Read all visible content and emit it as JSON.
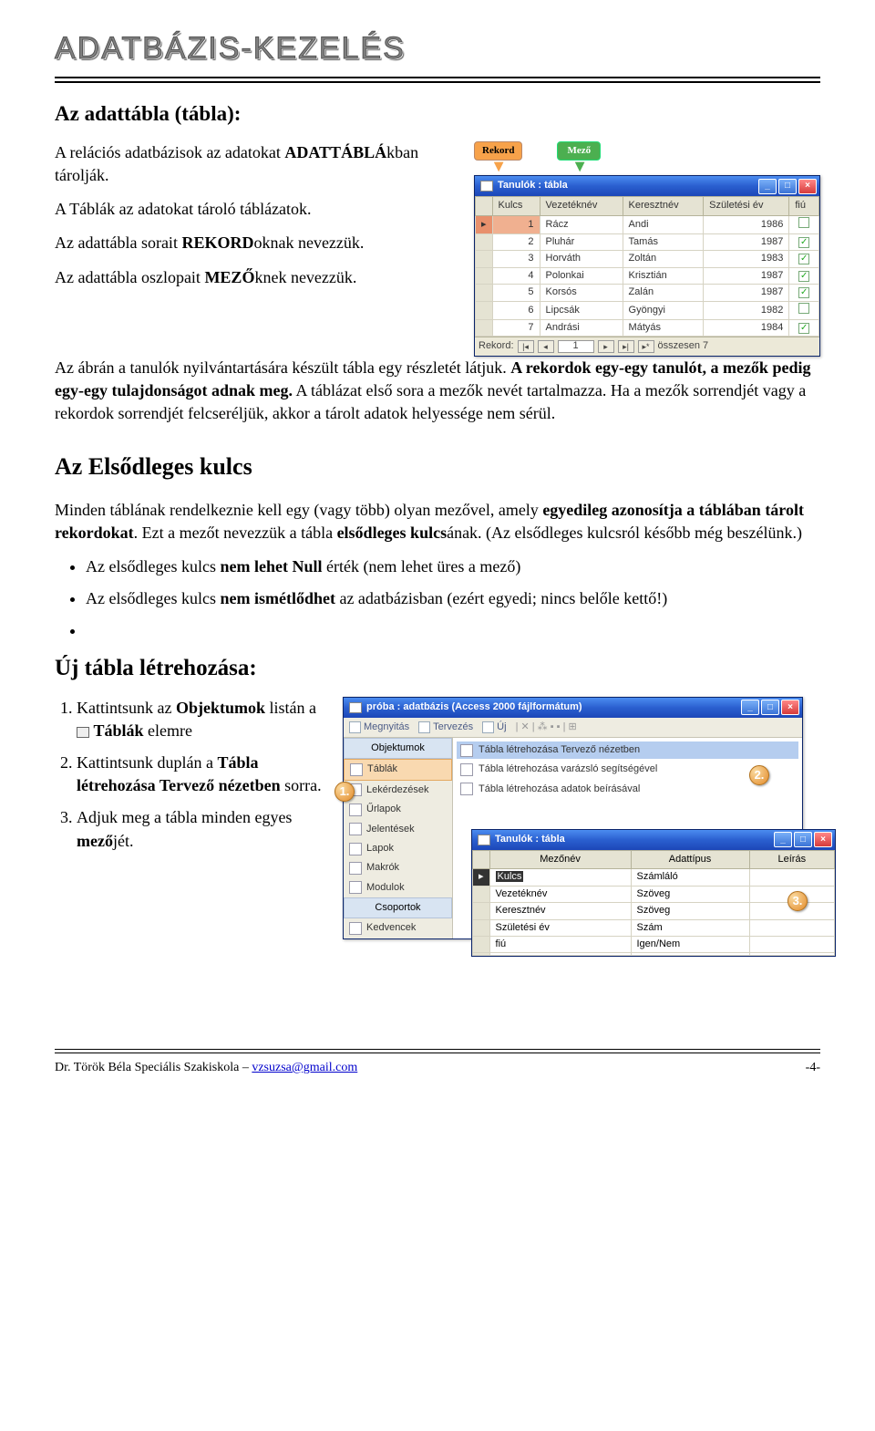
{
  "header": {
    "title": "ADATBÁZIS-KEZELÉS"
  },
  "section1": {
    "title": "Az adattábla (tábla):",
    "p1_a": "A relációs adatbázisok az adatokat ",
    "p1_b": "ADATTÁBLÁ",
    "p1_c": "kban tárolják.",
    "p2": "A Táblák az adatokat tároló táblázatok.",
    "p3_a": "Az adattábla sorait ",
    "p3_b": "REKORD",
    "p3_c": "oknak nevezzük.",
    "p4_a": "Az adattábla oszlopait ",
    "p4_b": "MEZŐ",
    "p4_c": "knek nevezzük.",
    "p5_a": "Az ábrán a tanulók nyilvántartására készült tábla egy részletét látjuk. ",
    "p5_b": "A rekordok egy-egy tanulót, a mezők pedig egy-egy tulajdonságot adnak meg.",
    "p5_c": " A táblázat első sora a mezők nevét tartalmazza. Ha a mezők sorrendjét vagy a rekordok sorrendjét felcseréljük, akkor a tárolt adatok helyessége nem sérül."
  },
  "callouts": {
    "rec": "Rekord",
    "mez": "Mező"
  },
  "tablewin": {
    "title": "Tanulók : tábla",
    "columns": [
      "Kulcs",
      "Vezetéknév",
      "Keresztnév",
      "Születési év",
      "fiú"
    ],
    "rows": [
      {
        "n": "1",
        "v": "Rácz",
        "k": "Andi",
        "e": "1986",
        "f": false,
        "sel": true
      },
      {
        "n": "2",
        "v": "Pluhár",
        "k": "Tamás",
        "e": "1987",
        "f": true
      },
      {
        "n": "3",
        "v": "Horváth",
        "k": "Zoltán",
        "e": "1983",
        "f": true
      },
      {
        "n": "4",
        "v": "Polonkai",
        "k": "Krisztián",
        "e": "1987",
        "f": true
      },
      {
        "n": "5",
        "v": "Korsós",
        "k": "Zalán",
        "e": "1987",
        "f": true
      },
      {
        "n": "6",
        "v": "Lipcsák",
        "k": "Gyöngyi",
        "e": "1982",
        "f": false
      },
      {
        "n": "7",
        "v": "Andrási",
        "k": "Mátyás",
        "e": "1984",
        "f": true
      }
    ],
    "nav_label": "Rekord:",
    "nav_val": "1",
    "nav_total": "összesen 7"
  },
  "section2": {
    "title": "Az Elsődleges kulcs",
    "p1_a": "Minden táblának rendelkeznie kell egy (vagy több) olyan mezővel, amely ",
    "p1_b": "egyedileg azonosítja a táblában tárolt rekordokat",
    "p1_c": ". Ezt a mezőt nevezzük a tábla ",
    "p1_d": "elsődleges kulcs",
    "p1_e": "ának. (Az elsődleges kulcsról később még beszélünk.)",
    "li1_a": "Az elsődleges kulcs ",
    "li1_b": "nem lehet Null",
    "li1_c": " érték (nem lehet üres a mező)",
    "li2_a": "Az elsődleges kulcs ",
    "li2_b": "nem ismétlődhet",
    "li2_c": " az adatbázisban (ezért egyedi; nincs belőle kettő!)"
  },
  "section3": {
    "title": "Új tábla létrehozása:",
    "li1_a": "Kattintsunk az ",
    "li1_b": "Objektumok",
    "li1_c": " listán a ",
    "li1_d": "Táblák",
    "li1_e": " elemre",
    "li2_a": "Kattintsunk duplán a ",
    "li2_b": "Tábla létrehozása Tervező nézetben",
    "li2_c": " sorra.",
    "li3_a": "Adjuk meg a tábla minden egyes ",
    "li3_b": "mező",
    "li3_c": "jét."
  },
  "dbwin": {
    "title": "próba : adatbázis (Access 2000 fájlformátum)",
    "toolbar": [
      "Megnyitás",
      "Tervezés",
      "Új"
    ],
    "grp1": "Objektumok",
    "grp2": "Csoportok",
    "side": [
      "Táblák",
      "Lekérdezések",
      "Űrlapok",
      "Jelentések",
      "Lapok",
      "Makrók",
      "Modulok"
    ],
    "side2": [
      "Kedvencek"
    ],
    "create": [
      "Tábla létrehozása Tervező nézetben",
      "Tábla létrehozása varázsló segítségével",
      "Tábla létrehozása adatok beírásával"
    ]
  },
  "innerwin": {
    "title": "Tanulók : tábla",
    "cols": [
      "Mezőnév",
      "Adattípus",
      "Leírás"
    ],
    "rows": [
      [
        "Kulcs",
        "Számláló",
        ""
      ],
      [
        "Vezetéknév",
        "Szöveg",
        ""
      ],
      [
        "Keresztnév",
        "Szöveg",
        ""
      ],
      [
        "Születési év",
        "Szám",
        ""
      ],
      [
        "fiú",
        "Igen/Nem",
        ""
      ]
    ]
  },
  "badges": {
    "b1": "1.",
    "b2": "2.",
    "b3": "3."
  },
  "footer": {
    "left_a": "Dr. Török Béla Speciális Szakiskola – ",
    "left_link": "vzsuzsa@gmail.com",
    "right": "-4-"
  }
}
